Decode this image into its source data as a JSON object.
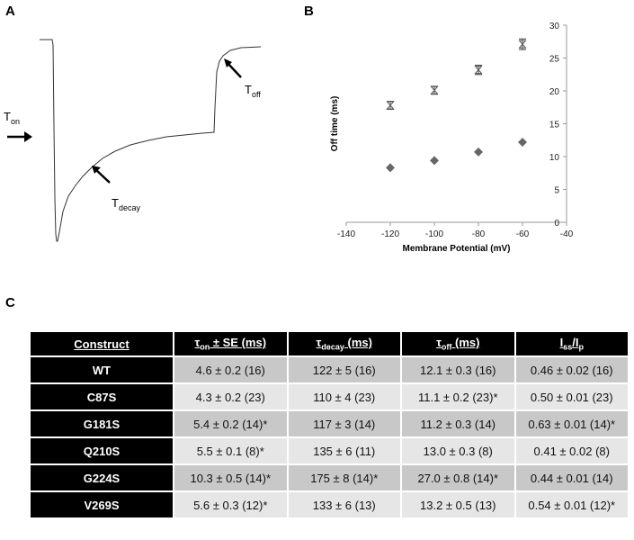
{
  "panels": {
    "a": "A",
    "b": "B",
    "c": "C"
  },
  "trace": {
    "t_on": "T",
    "t_on_sub": "on",
    "t_decay": "T",
    "t_decay_sub": "decay",
    "t_off": "T",
    "t_off_sub": "off"
  },
  "chart_data": {
    "type": "scatter",
    "xlabel": "Membrane Potential (mV)",
    "ylabel": "Off time (ms)",
    "xlim": [
      -140,
      -40
    ],
    "ylim": [
      0,
      30
    ],
    "xticks": [
      -140,
      -120,
      -100,
      -80,
      -60,
      -40
    ],
    "yticks": [
      0,
      5,
      10,
      15,
      20,
      25,
      30
    ],
    "y_axis_position": "right",
    "grid": false,
    "series": [
      {
        "marker": "hourglass-with-error-bars",
        "color": "#555555",
        "x": [
          -120,
          -100,
          -80,
          -60
        ],
        "y": [
          17.8,
          20.1,
          23.2,
          27.1
        ],
        "err": [
          0.6,
          0.6,
          0.7,
          0.8
        ]
      },
      {
        "marker": "diamond",
        "color": "#666666",
        "x": [
          -120,
          -100,
          -80,
          -60
        ],
        "y": [
          8.3,
          9.4,
          10.7,
          12.2
        ]
      }
    ]
  },
  "table": {
    "headers": [
      {
        "main": "Construct",
        "sub": "",
        "rest": ""
      },
      {
        "main": "τ",
        "sub": "on",
        "rest": " ± SE (ms)"
      },
      {
        "main": "τ",
        "sub": "decay",
        "rest": " (ms)"
      },
      {
        "main": "τ",
        "sub": "off",
        "rest": " (ms)"
      },
      {
        "main": "I",
        "sub": "ss",
        "rest": "/I",
        "sub2": "p"
      }
    ],
    "rows": [
      [
        "WT",
        "4.6 ± 0.2 (16)",
        "122 ± 5 (16)",
        "12.1 ± 0.3 (16)",
        "0.46 ± 0.02 (16)"
      ],
      [
        "C87S",
        "4.3 ± 0.2 (23)",
        "110 ± 4 (23)",
        "11.1 ± 0.2 (23)*",
        "0.50 ± 0.01 (23)"
      ],
      [
        "G181S",
        "5.4 ± 0.2 (14)*",
        "117 ± 3 (14)",
        "11.2 ± 0.3 (14)",
        "0.63 ± 0.01 (14)*"
      ],
      [
        "Q210S",
        "5.5 ± 0.1 (8)*",
        "135 ± 6 (11)",
        "13.0 ± 0.3 (8)",
        "0.41 ± 0.02 (8)"
      ],
      [
        "G224S",
        "10.3 ± 0.5 (14)*",
        "175 ± 8 (14)*",
        "27.0 ± 0.8 (14)*",
        "0.44 ± 0.01 (14)"
      ],
      [
        "V269S",
        "5.6 ± 0.3 (12)*",
        "133 ± 6 (13)",
        "13.2 ± 0.5 (13)",
        "0.54 ± 0.01 (12)*"
      ]
    ]
  }
}
